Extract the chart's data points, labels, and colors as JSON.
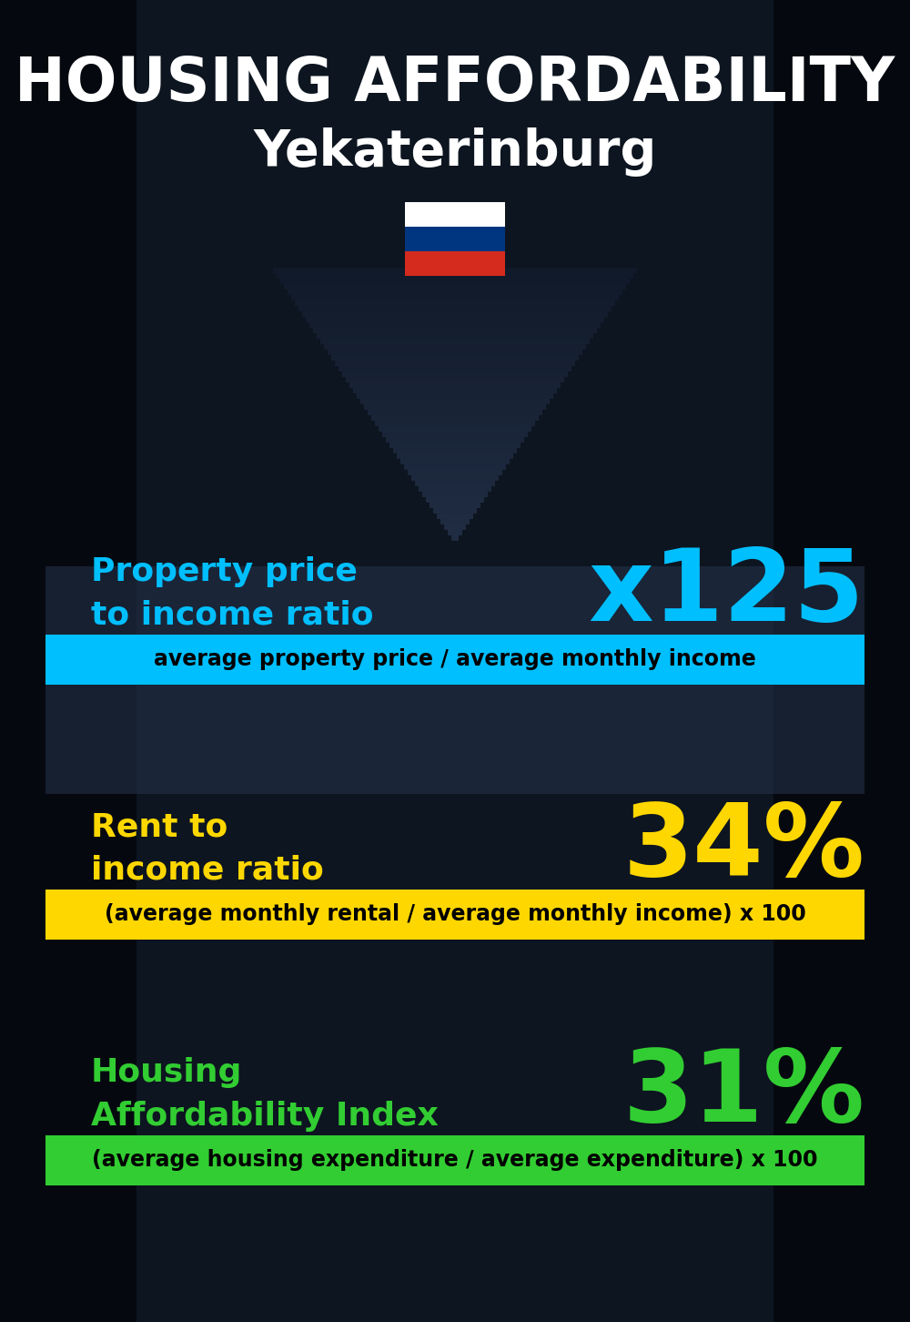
{
  "title_line1": "HOUSING AFFORDABILITY",
  "title_line2": "Yekaterinburg",
  "background_color": "#0d1b2a",
  "section1_label": "Property price\nto income ratio",
  "section1_value": "x125",
  "section1_label_color": "#00bfff",
  "section1_value_color": "#00bfff",
  "section1_formula": "average property price / average monthly income",
  "section1_formula_bg": "#00bfff",
  "section1_formula_color": "#000000",
  "section2_label": "Rent to\nincome ratio",
  "section2_value": "34%",
  "section2_label_color": "#ffd700",
  "section2_value_color": "#ffd700",
  "section2_formula": "(average monthly rental / average monthly income) x 100",
  "section2_formula_bg": "#ffd700",
  "section2_formula_color": "#000000",
  "section3_label": "Housing\nAffordability Index",
  "section3_value": "31%",
  "section3_label_color": "#32cd32",
  "section3_value_color": "#32cd32",
  "section3_formula": "(average housing expenditure / average expenditure) x 100",
  "section3_formula_bg": "#32cd32",
  "section3_formula_color": "#000000",
  "title_color": "#ffffff",
  "flag_white": "#ffffff",
  "flag_blue": "#003580",
  "flag_red": "#d52b1e"
}
